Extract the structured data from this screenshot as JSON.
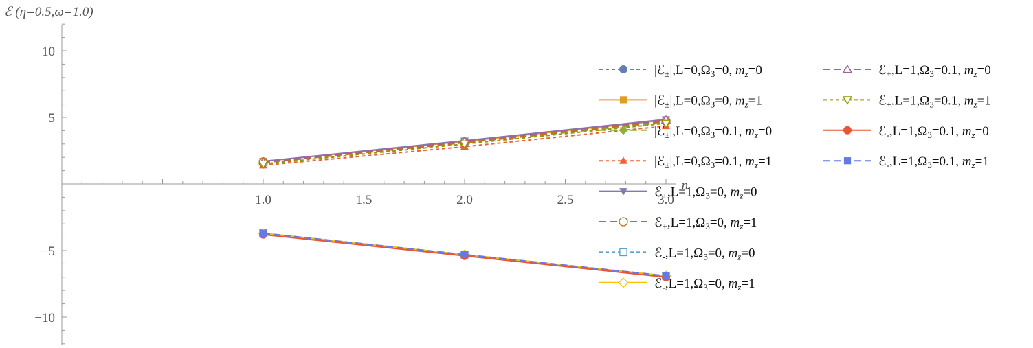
{
  "chart_data": {
    "type": "line",
    "title": "",
    "ylabel": "ℰ (η=0.5,ω=1.0)",
    "xlabel": "n",
    "xlim": [
      0.0,
      3.05
    ],
    "ylim": [
      -12.0,
      12.0
    ],
    "x_ticks": [
      1.0,
      1.5,
      2.0,
      2.5,
      3.0
    ],
    "x_tick_labels": [
      "1.0",
      "1.5",
      "2.0",
      "2.5",
      "3.0"
    ],
    "y_ticks": [
      -10,
      -5,
      5,
      10
    ],
    "y_tick_labels": [
      "−10",
      "−5",
      "5",
      "10"
    ],
    "grid": false,
    "legend_position": "right",
    "series": [
      {
        "name": "|ℰ±|,L=0,Ω3=0, mz=0",
        "x": [
          1,
          2,
          3
        ],
        "y": [
          1.7,
          3.2,
          4.8
        ],
        "color": "#5E81B5",
        "dash": "dashed",
        "marker": "circle-filled"
      },
      {
        "name": "|ℰ±|,L=0,Ω3=0, mz=1",
        "x": [
          1,
          2,
          3
        ],
        "y": [
          1.7,
          3.2,
          4.8
        ],
        "color": "#E19C24",
        "dash": "solid",
        "marker": "square-filled"
      },
      {
        "name": "|ℰ±|,L=0,Ω3=0.1, mz=0",
        "x": [
          1,
          2,
          3
        ],
        "y": [
          1.6,
          3.1,
          4.6
        ],
        "color": "#8FB032",
        "dash": "longdash",
        "marker": "diamond-filled"
      },
      {
        "name": "|ℰ±|,L=0,Ω3=0.1, mz=1",
        "x": [
          1,
          2,
          3
        ],
        "y": [
          1.4,
          2.8,
          4.35
        ],
        "color": "#EB6235",
        "dash": "dashed",
        "marker": "triangle-filled"
      },
      {
        "name": "ℰ+,L=1,Ω3=0, mz=0",
        "x": [
          1,
          2,
          3
        ],
        "y": [
          1.7,
          3.25,
          4.85
        ],
        "color": "#8778B3",
        "dash": "solid",
        "marker": "triangle-down-filled"
      },
      {
        "name": "ℰ+,L=1,Ω3=0, mz=1",
        "x": [
          1,
          2,
          3
        ],
        "y": [
          1.6,
          3.1,
          4.7
        ],
        "color": "#C56E1A",
        "dash": "longdash",
        "marker": "circle-open"
      },
      {
        "name": "ℰ-,L=1,Ω3=0, mz=0",
        "x": [
          1,
          2,
          3
        ],
        "y": [
          -3.7,
          -5.3,
          -6.9
        ],
        "color": "#5D9EC7",
        "dash": "dashed",
        "marker": "square-open"
      },
      {
        "name": "ℰ-,L=1,Ω3=0, mz=1",
        "x": [
          1,
          2,
          3
        ],
        "y": [
          -3.7,
          -5.3,
          -6.9
        ],
        "color": "#FFBF00",
        "dash": "solid",
        "marker": "diamond-open"
      },
      {
        "name": "ℰ+,L=1,Ω3=0.1, mz=0",
        "x": [
          1,
          2,
          3
        ],
        "y": [
          1.65,
          3.2,
          4.8
        ],
        "color": "#A5609D",
        "dash": "longdash",
        "marker": "triangle-open"
      },
      {
        "name": "ℰ+,L=1,Ω3=0.1, mz=1",
        "x": [
          1,
          2,
          3
        ],
        "y": [
          1.5,
          3.0,
          4.55
        ],
        "color": "#929600",
        "dash": "dashed",
        "marker": "triangle-down-open"
      },
      {
        "name": "ℰ-,L=1,Ω3=0.1, mz=0",
        "x": [
          1,
          2,
          3
        ],
        "y": [
          -3.8,
          -5.4,
          -7.0
        ],
        "color": "#E95536",
        "dash": "solid",
        "marker": "circle-filled"
      },
      {
        "name": "ℰ-,L=1,Ω3=0.1, mz=1",
        "x": [
          1,
          2,
          3
        ],
        "y": [
          -3.7,
          -5.3,
          -6.9
        ],
        "color": "#6279E6",
        "dash": "longdash",
        "marker": "square-filled"
      }
    ],
    "legend": {
      "columns": [
        [
          {
            "pre": "|ℰ",
            "sub": "±",
            "mid": "|,L=0,Ω",
            "sub2": "3",
            "post": "=0, ",
            "mvar": "m",
            "msub": "z",
            "mval": "=0"
          },
          {
            "pre": "|ℰ",
            "sub": "±",
            "mid": "|,L=0,Ω",
            "sub2": "3",
            "post": "=0, ",
            "mvar": "m",
            "msub": "z",
            "mval": "=1"
          },
          {
            "pre": "|ℰ",
            "sub": "±",
            "mid": "|,L=0,Ω",
            "sub2": "3",
            "post": "=0.1, ",
            "mvar": "m",
            "msub": "z",
            "mval": "=0"
          },
          {
            "pre": "|ℰ",
            "sub": "±",
            "mid": "|,L=0,Ω",
            "sub2": "3",
            "post": "=0.1, ",
            "mvar": "m",
            "msub": "z",
            "mval": "=1"
          },
          {
            "pre": "ℰ",
            "sub": "+",
            "mid": ",L=1,Ω",
            "sub2": "3",
            "post": "=0, ",
            "mvar": "m",
            "msub": "z",
            "mval": "=0"
          },
          {
            "pre": "ℰ",
            "sub": "+",
            "mid": ",L=1,Ω",
            "sub2": "3",
            "post": "=0, ",
            "mvar": "m",
            "msub": "z",
            "mval": "=1"
          },
          {
            "pre": "ℰ",
            "sub": "-",
            "mid": ",L=1,Ω",
            "sub2": "3",
            "post": "=0, ",
            "mvar": "m",
            "msub": "z",
            "mval": "=0"
          },
          {
            "pre": "ℰ",
            "sub": "-",
            "mid": ",L=1,Ω",
            "sub2": "3",
            "post": "=0, ",
            "mvar": "m",
            "msub": "z",
            "mval": "=1"
          }
        ],
        [
          {
            "pre": "ℰ",
            "sub": "+",
            "mid": ",L=1,Ω",
            "sub2": "3",
            "post": "=0.1, ",
            "mvar": "m",
            "msub": "z",
            "mval": "=0"
          },
          {
            "pre": "ℰ",
            "sub": "+",
            "mid": ",L=1,Ω",
            "sub2": "3",
            "post": "=0.1, ",
            "mvar": "m",
            "msub": "z",
            "mval": "=1"
          },
          {
            "pre": "ℰ",
            "sub": "-",
            "mid": ",L=1,Ω",
            "sub2": "3",
            "post": "=0.1, ",
            "mvar": "m",
            "msub": "z",
            "mval": "=0"
          },
          {
            "pre": "ℰ",
            "sub": "-",
            "mid": ",L=1,Ω",
            "sub2": "3",
            "post": "=0.1, ",
            "mvar": "m",
            "msub": "z",
            "mval": "=1"
          }
        ]
      ]
    }
  }
}
